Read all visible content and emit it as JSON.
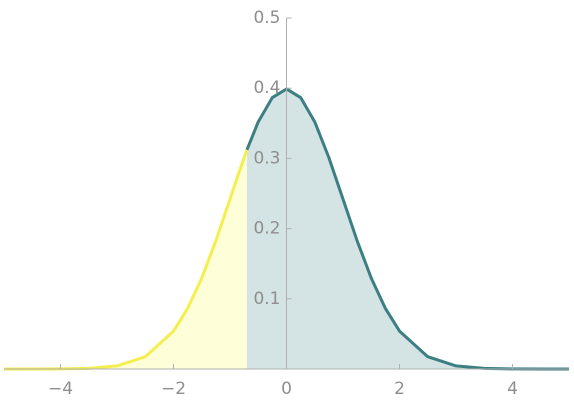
{
  "chart_data": {
    "type": "area",
    "series": [
      {
        "color": "#f4ef4f",
        "fill_color": "#fefed8",
        "x": [
          -5,
          -4.5,
          -4,
          -3.5,
          -3,
          -2.5,
          -2,
          -1.75,
          -1.5,
          -1.25,
          -1,
          -0.85,
          -0.7
        ],
        "values": [
          0,
          0,
          0.0001,
          0.0009,
          0.0044,
          0.0175,
          0.054,
          0.0863,
          0.1295,
          0.1826,
          0.242,
          0.278,
          0.3123
        ]
      },
      {
        "color": "#3c7f83",
        "fill_color": "#d4e3e3",
        "x": [
          -0.7,
          -0.5,
          -0.25,
          0,
          0.25,
          0.5,
          0.75,
          1,
          1.25,
          1.5,
          1.75,
          2,
          2.5,
          3,
          3.5,
          4,
          4.5,
          5
        ],
        "values": [
          0.3123,
          0.3521,
          0.3867,
          0.3989,
          0.3867,
          0.3521,
          0.3011,
          0.242,
          0.1826,
          0.1295,
          0.0863,
          0.054,
          0.0175,
          0.0044,
          0.0009,
          0.0001,
          0,
          0
        ]
      }
    ],
    "xlim": [
      -5,
      5
    ],
    "ylim": [
      0,
      0.5
    ],
    "xticks": [
      {
        "value": -4,
        "label": "−4"
      },
      {
        "value": -2,
        "label": "−2"
      },
      0,
      2,
      4
    ],
    "yticks": [
      0.1,
      0.2,
      0.3,
      0.4,
      0.5
    ]
  }
}
